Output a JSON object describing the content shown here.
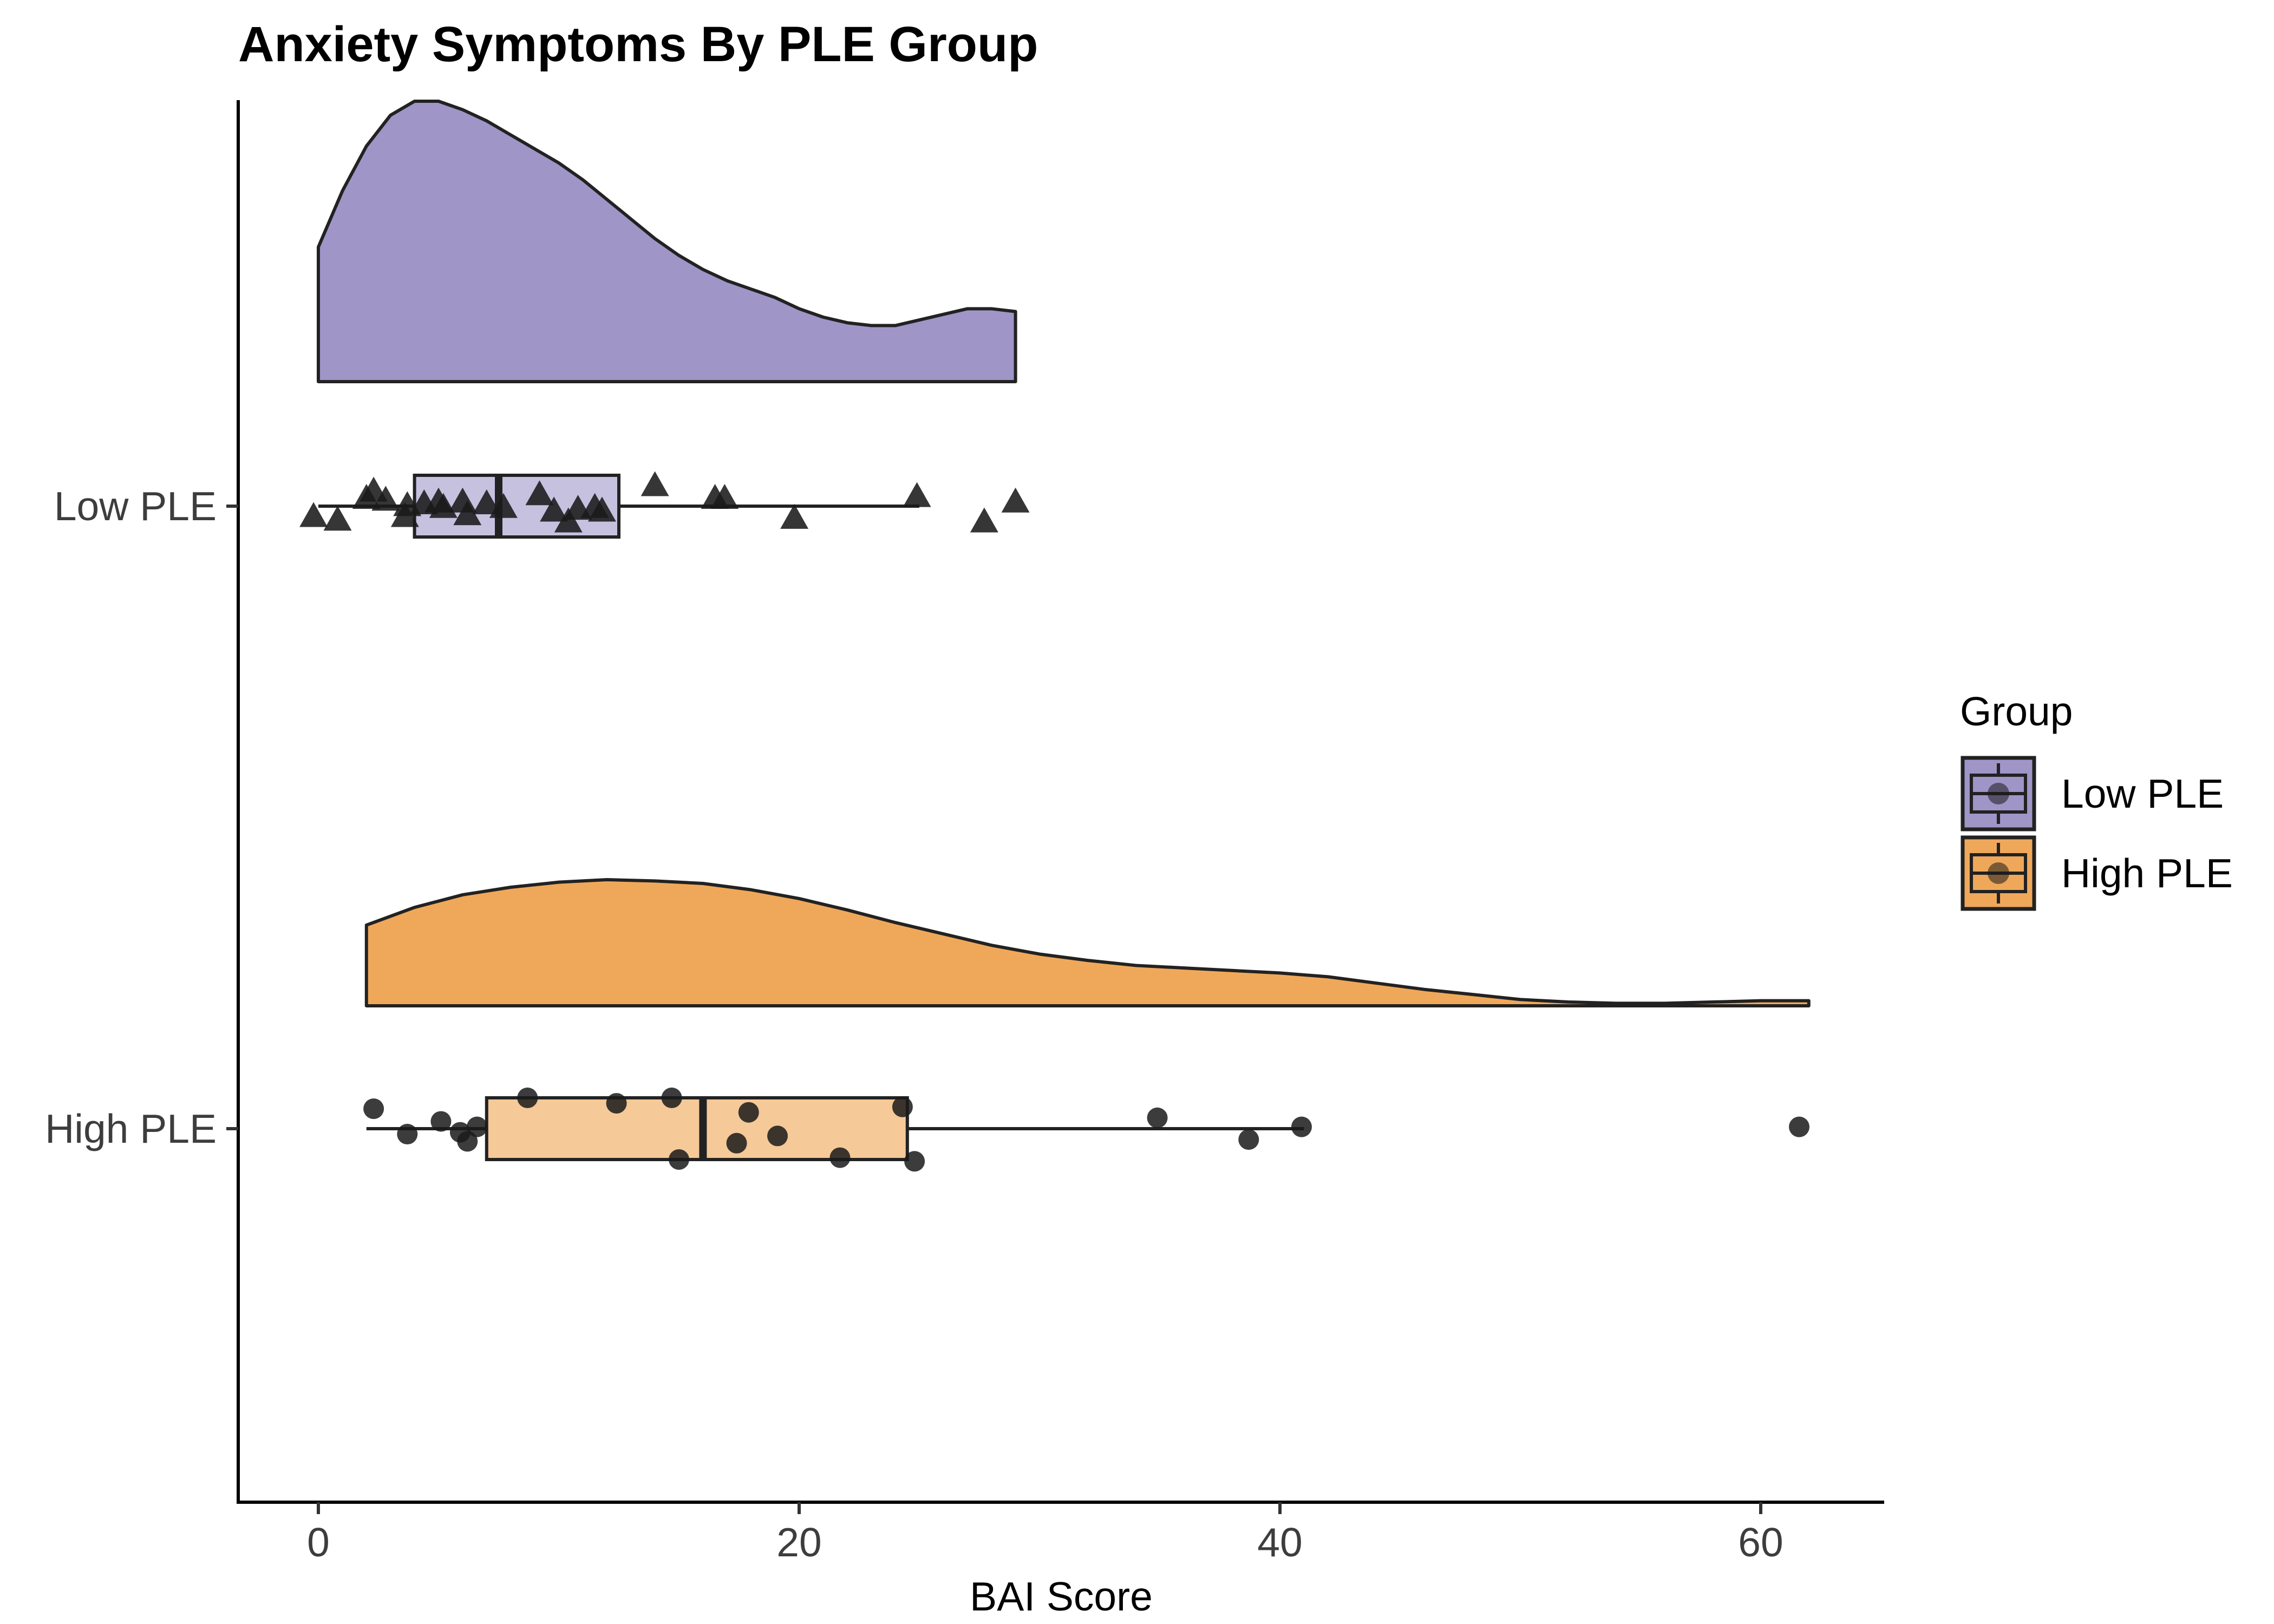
{
  "chart_data": {
    "type": "raincloud",
    "title": "Anxiety Symptoms By PLE Group",
    "xlabel": "BAI Score",
    "ylabel": "",
    "xlim": [
      -3.5,
      65
    ],
    "x_ticks": [
      0,
      20,
      40,
      60
    ],
    "grid": false,
    "legend": {
      "title": "Group",
      "position": "right",
      "entries": [
        "Low PLE",
        "High PLE"
      ]
    },
    "categories": [
      "Low PLE",
      "High PLE"
    ],
    "series": [
      {
        "name": "Low PLE",
        "color": "#9f95c7",
        "box_color": "#c7c1e0",
        "marker": "triangle",
        "density_range": [
          0,
          29
        ],
        "density": [
          [
            0,
            0.48
          ],
          [
            1,
            0.68
          ],
          [
            2,
            0.84
          ],
          [
            3,
            0.95
          ],
          [
            4,
            1.0
          ],
          [
            5,
            1.0
          ],
          [
            6,
            0.97
          ],
          [
            7,
            0.93
          ],
          [
            8,
            0.88
          ],
          [
            9,
            0.83
          ],
          [
            10,
            0.78
          ],
          [
            11,
            0.72
          ],
          [
            12,
            0.65
          ],
          [
            13,
            0.58
          ],
          [
            14,
            0.51
          ],
          [
            15,
            0.45
          ],
          [
            16,
            0.4
          ],
          [
            17,
            0.36
          ],
          [
            18,
            0.33
          ],
          [
            19,
            0.3
          ],
          [
            20,
            0.26
          ],
          [
            21,
            0.23
          ],
          [
            22,
            0.21
          ],
          [
            23,
            0.2
          ],
          [
            24,
            0.2
          ],
          [
            25,
            0.22
          ],
          [
            26,
            0.24
          ],
          [
            27,
            0.26
          ],
          [
            28,
            0.26
          ],
          [
            29,
            0.25
          ]
        ],
        "box": {
          "min": 0,
          "q1": 4,
          "median": 7.5,
          "q3": 12.5,
          "max": 25
        },
        "points": [
          [
            -0.2,
            -0.3
          ],
          [
            0.8,
            -0.4
          ],
          [
            2,
            0.2
          ],
          [
            2.3,
            0.4
          ],
          [
            2.8,
            0.15
          ],
          [
            3.6,
            -0.3
          ],
          [
            3.7,
            0
          ],
          [
            4.4,
            0.05
          ],
          [
            5,
            0.1
          ],
          [
            5.2,
            -0.05
          ],
          [
            6,
            0.1
          ],
          [
            6.2,
            -0.25
          ],
          [
            7,
            0.05
          ],
          [
            7.7,
            -0.05
          ],
          [
            9.2,
            0.3
          ],
          [
            9.8,
            -0.15
          ],
          [
            10.4,
            -0.45
          ],
          [
            10.8,
            -0.1
          ],
          [
            11.5,
            -0.05
          ],
          [
            11.8,
            -0.15
          ],
          [
            14,
            0.55
          ],
          [
            16.5,
            0.2
          ],
          [
            16.9,
            0.2
          ],
          [
            19.8,
            -0.35
          ],
          [
            24.9,
            0.25
          ],
          [
            27.7,
            -0.45
          ],
          [
            29,
            0.1
          ]
        ]
      },
      {
        "name": "High PLE",
        "color": "#efa85a",
        "box_color": "#f5c998",
        "marker": "circle",
        "density_range": [
          2,
          62
        ],
        "density": [
          [
            2,
            0.64
          ],
          [
            4,
            0.78
          ],
          [
            6,
            0.88
          ],
          [
            8,
            0.94
          ],
          [
            10,
            0.98
          ],
          [
            12,
            1.0
          ],
          [
            14,
            0.99
          ],
          [
            16,
            0.97
          ],
          [
            18,
            0.92
          ],
          [
            20,
            0.85
          ],
          [
            22,
            0.76
          ],
          [
            24,
            0.66
          ],
          [
            26,
            0.57
          ],
          [
            28,
            0.48
          ],
          [
            30,
            0.41
          ],
          [
            32,
            0.36
          ],
          [
            34,
            0.32
          ],
          [
            36,
            0.3
          ],
          [
            38,
            0.28
          ],
          [
            40,
            0.26
          ],
          [
            42,
            0.23
          ],
          [
            44,
            0.18
          ],
          [
            46,
            0.13
          ],
          [
            48,
            0.09
          ],
          [
            50,
            0.05
          ],
          [
            52,
            0.03
          ],
          [
            54,
            0.02
          ],
          [
            56,
            0.02
          ],
          [
            58,
            0.03
          ],
          [
            60,
            0.04
          ],
          [
            62,
            0.04
          ]
        ],
        "box": {
          "min": 2,
          "q1": 7,
          "median": 16,
          "q3": 24.5,
          "max": 41
        },
        "points": [
          [
            2.3,
            0.55
          ],
          [
            3.7,
            -0.15
          ],
          [
            5.1,
            0.2
          ],
          [
            5.9,
            -0.1
          ],
          [
            6.2,
            -0.35
          ],
          [
            6.6,
            0.05
          ],
          [
            8.7,
            0.85
          ],
          [
            12.4,
            0.7
          ],
          [
            14.7,
            0.85
          ],
          [
            15,
            -0.85
          ],
          [
            17.4,
            -0.4
          ],
          [
            17.9,
            0.45
          ],
          [
            19.1,
            -0.2
          ],
          [
            21.7,
            -0.8
          ],
          [
            24.3,
            0.6
          ],
          [
            24.8,
            -0.9
          ],
          [
            34.9,
            0.3
          ],
          [
            38.7,
            -0.3
          ],
          [
            40.9,
            0.05
          ],
          [
            61.6,
            0.05
          ]
        ]
      }
    ]
  }
}
